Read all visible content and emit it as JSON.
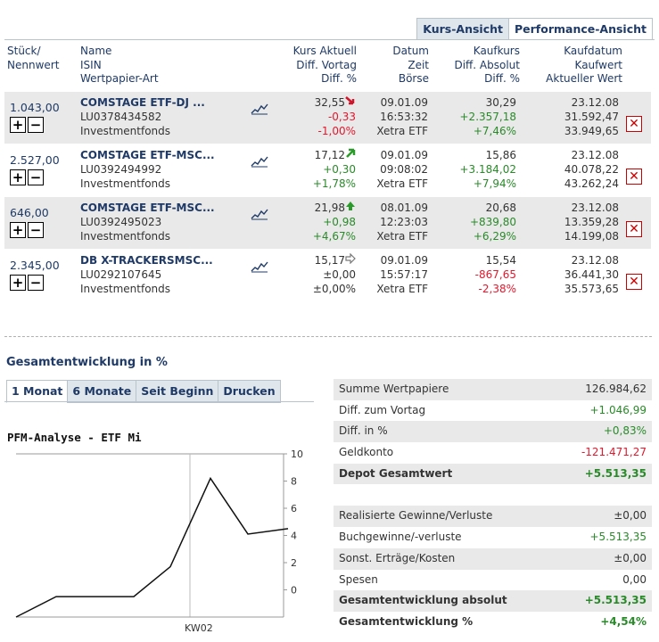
{
  "view_tabs": [
    "Kurs-Ansicht",
    "Performance-Ansicht"
  ],
  "header": {
    "col1": [
      "Stück/",
      "Nennwert"
    ],
    "col2": [
      "Name",
      "ISIN",
      "Wertpapier-Art"
    ],
    "col3": [
      "Kurs Aktuell",
      "Diff. Vortag",
      "Diff. %"
    ],
    "col4": [
      "Datum",
      "Zeit",
      "Börse"
    ],
    "col5": [
      "Kaufkurs",
      "Diff. Absolut",
      "Diff. %"
    ],
    "col6": [
      "Kaufdatum",
      "Kaufwert",
      "Aktueller Wert"
    ]
  },
  "positions": [
    {
      "qty": "1.043,00",
      "name": "COMSTAGE ETF-DJ ...",
      "isin": "LU0378434582",
      "type": "Investmentfonds",
      "kurs": "32,55",
      "trend": "down",
      "diff": "-0,33",
      "diffpct": "-1,00%",
      "datum": "09.01.09",
      "zeit": "16:53:32",
      "boerse": "Xetra ETF",
      "kaufkurs": "30,29",
      "diffabs": "+2.357,18",
      "diffabspct": "+7,46%",
      "kaufdatum": "23.12.08",
      "kaufwert": "31.592,47",
      "aktwert": "33.949,65"
    },
    {
      "qty": "2.527,00",
      "name": "COMSTAGE ETF-MSC...",
      "isin": "LU0392494992",
      "type": "Investmentfonds",
      "kurs": "17,12",
      "trend": "upright",
      "diff": "+0,30",
      "diffpct": "+1,78%",
      "datum": "09.01.09",
      "zeit": "09:08:02",
      "boerse": "Xetra ETF",
      "kaufkurs": "15,86",
      "diffabs": "+3.184,02",
      "diffabspct": "+7,94%",
      "kaufdatum": "23.12.08",
      "kaufwert": "40.078,22",
      "aktwert": "43.262,24"
    },
    {
      "qty": "646,00",
      "name": "COMSTAGE ETF-MSC...",
      "isin": "LU0392495023",
      "type": "Investmentfonds",
      "kurs": "21,98",
      "trend": "up",
      "diff": "+0,98",
      "diffpct": "+4,67%",
      "datum": "08.01.09",
      "zeit": "12:23:03",
      "boerse": "Xetra ETF",
      "kaufkurs": "20,68",
      "diffabs": "+839,80",
      "diffabspct": "+6,29%",
      "kaufdatum": "23.12.08",
      "kaufwert": "13.359,28",
      "aktwert": "14.199,08"
    },
    {
      "qty": "2.345,00",
      "name": "DB X-TRACKERSMSC...",
      "isin": "LU0292107645",
      "type": "Investmentfonds",
      "kurs": "15,17",
      "trend": "flat",
      "diff": "±0,00",
      "diffpct": "±0,00%",
      "datum": "09.01.09",
      "zeit": "15:57:17",
      "boerse": "Xetra ETF",
      "kaufkurs": "15,54",
      "diffabs": "-867,65",
      "diffabspct": "-2,38%",
      "kaufdatum": "23.12.08",
      "kaufwert": "36.441,30",
      "aktwert": "35.573,65"
    }
  ],
  "section_title": "Gesamtentwicklung in %",
  "chart_tabs": [
    "1 Monat",
    "6 Monate",
    "Seit Beginn",
    "Drucken"
  ],
  "chart_title": "PFM-Analyse - ETF Mi",
  "chart_data": {
    "type": "line",
    "title": "PFM-Analyse - ETF Mi",
    "x_tick_labels": [
      "KW02"
    ],
    "y_ticks": [
      0,
      2,
      4,
      6,
      8,
      10
    ],
    "ylim": [
      -2,
      10
    ],
    "series": [
      {
        "values": [
          -2.0,
          -0.5,
          -0.5,
          -0.5,
          1.7,
          8.2,
          4.1,
          4.5
        ]
      }
    ],
    "grid": "vertical line at KW02"
  },
  "summary": [
    {
      "label": "Summe Wertpapiere",
      "value": "126.984,62",
      "color": "#333",
      "bold": false,
      "shade": true
    },
    {
      "label": "Diff. zum Vortag",
      "value": "+1.046,99",
      "color": "#2a8a2a",
      "bold": false,
      "shade": false
    },
    {
      "label": "Diff. in %",
      "value": "+0,83%",
      "color": "#2a8a2a",
      "bold": false,
      "shade": true
    },
    {
      "label": "Geldkonto",
      "value": "-121.471,27",
      "color": "#e3182d",
      "bold": false,
      "shade": false
    },
    {
      "label": "Depot Gesamtwert",
      "value": "+5.513,35",
      "color": "#2a8a2a",
      "bold": true,
      "shade": true
    },
    {
      "gap": true
    },
    {
      "label": "Realisierte Gewinne/Verluste",
      "value": "±0,00",
      "color": "#333",
      "bold": false,
      "shade": true
    },
    {
      "label": "Buchgewinne/-verluste",
      "value": "+5.513,35",
      "color": "#2a8a2a",
      "bold": false,
      "shade": false
    },
    {
      "label": "Sonst. Erträge/Kosten",
      "value": "±0,00",
      "color": "#333",
      "bold": false,
      "shade": true
    },
    {
      "label": "Spesen",
      "value": "0,00",
      "color": "#333",
      "bold": false,
      "shade": false
    },
    {
      "label": "Gesamtentwicklung absolut",
      "value": "+5.513,35",
      "color": "#2a8a2a",
      "bold": true,
      "shade": true
    },
    {
      "label": "Gesamtentwicklung %",
      "value": "+4,54%",
      "color": "#2a8a2a",
      "bold": true,
      "shade": false
    }
  ]
}
